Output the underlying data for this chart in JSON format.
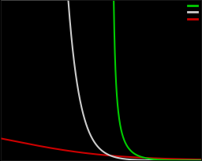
{
  "background_color": "#000000",
  "axes_facecolor": "#000000",
  "line_colors": [
    "#00cc00",
    "#cccccc",
    "#cc0000"
  ],
  "legend_colors": [
    "#00cc00",
    "#cccccc",
    "#cc0000"
  ],
  "figsize": [
    2.56,
    2.05
  ],
  "dpi": 100,
  "linewidth": 1.5,
  "xlim": [
    -2.0,
    8.0
  ],
  "ylim": [
    0.0,
    4.0
  ],
  "mu_FD": -1.5,
  "kT_FD": 2.5,
  "mu_BE": 3.5,
  "kT_BE": 0.6,
  "mu_MB": 2.2,
  "kT_MB": 0.6,
  "FD_scale": 1.0,
  "BE_scale": 1.0,
  "MB_scale": 1.0
}
